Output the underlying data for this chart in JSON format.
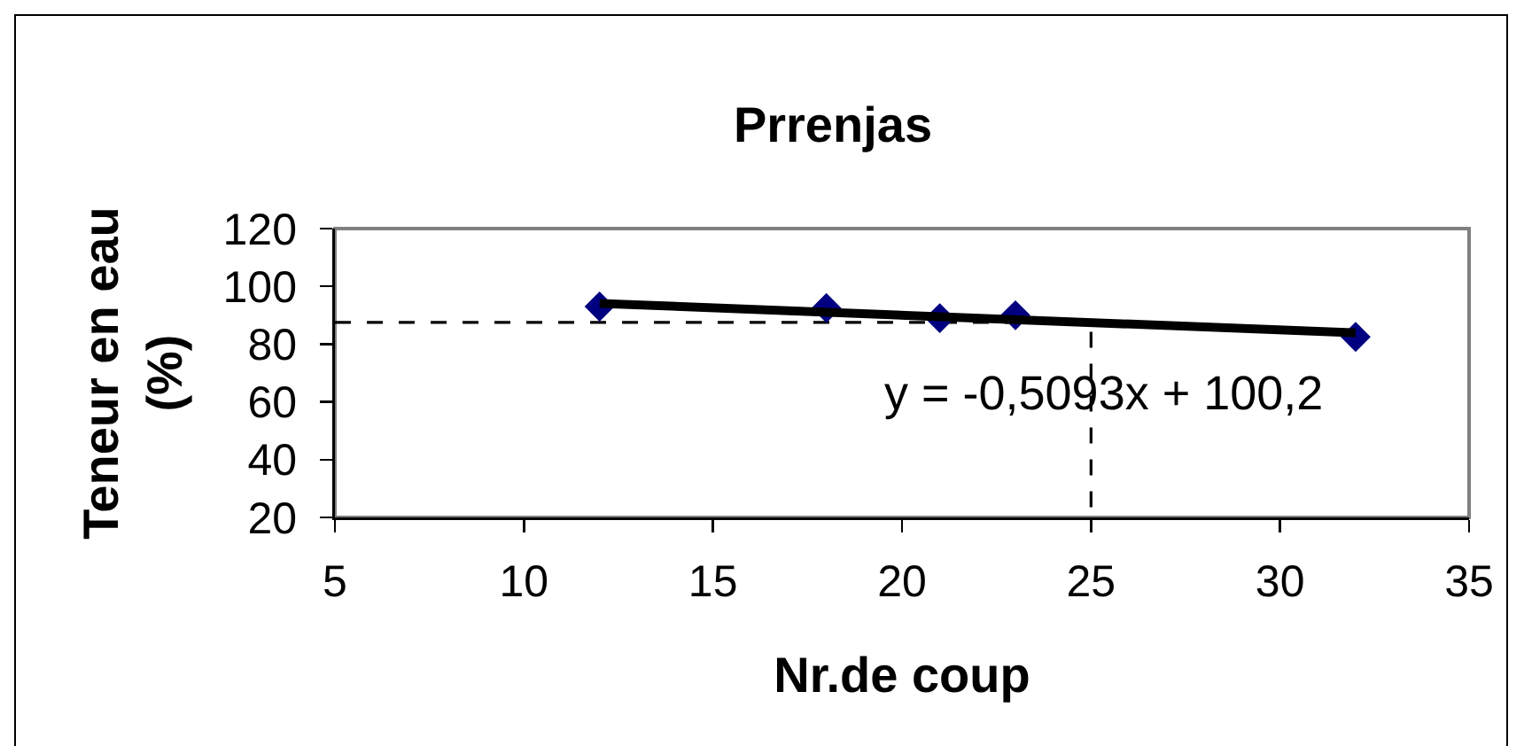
{
  "chart_data": {
    "type": "scatter",
    "title": "Prrenjas",
    "xlabel": "Nr.de coup",
    "ylabel": "Teneur en eau (%)",
    "xlim": [
      5,
      35
    ],
    "xticks": [
      5,
      10,
      15,
      20,
      25,
      30,
      35
    ],
    "ylim": [
      20,
      120
    ],
    "yticks": [
      20,
      40,
      60,
      80,
      100,
      120
    ],
    "series": [
      {
        "type": "line",
        "color": "#000000",
        "line_style": "dashed",
        "x": [
          5,
          25,
          25
        ],
        "values": [
          87.5,
          87.5,
          20
        ]
      },
      {
        "color": "#000080",
        "marker": "diamond",
        "x": [
          12,
          18,
          21,
          23,
          32
        ],
        "values": [
          93,
          92.5,
          89,
          90,
          82.5
        ]
      },
      {
        "type": "line",
        "color": "#000000",
        "x": [
          12,
          32
        ],
        "values": [
          94.1,
          83.9
        ]
      }
    ],
    "annotations": [
      "y = -0,5093x + 100,2"
    ]
  }
}
